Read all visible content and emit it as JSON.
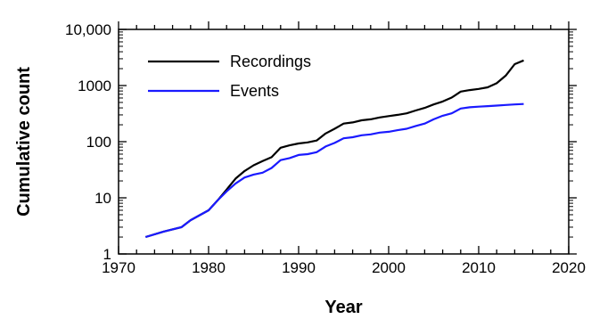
{
  "chart_data": {
    "type": "line",
    "title": "",
    "xlabel": "Year",
    "ylabel": "Cumulative count",
    "xlim": [
      1970,
      2020
    ],
    "ylim": [
      1,
      10000
    ],
    "yscale": "log",
    "x_ticks": [
      "1970",
      "1980",
      "1990",
      "2000",
      "2010",
      "2020"
    ],
    "y_ticks": [
      "1",
      "10",
      "100",
      "1000",
      "10,000"
    ],
    "legend_position": "top-left",
    "grid": false,
    "series": [
      {
        "name": "Recordings",
        "color": "#000000",
        "x": [
          1973,
          1975,
          1977,
          1978,
          1980,
          1981,
          1982,
          1983,
          1984,
          1985,
          1986,
          1987,
          1988,
          1989,
          1990,
          1991,
          1992,
          1993,
          1994,
          1995,
          1996,
          1997,
          1998,
          1999,
          2000,
          2001,
          2002,
          2003,
          2004,
          2005,
          2006,
          2007,
          2008,
          2009,
          2010,
          2011,
          2012,
          2013,
          2014,
          2015
        ],
        "values": [
          2,
          2.5,
          3,
          4,
          6,
          9,
          14,
          22,
          30,
          38,
          45,
          53,
          78,
          86,
          93,
          97,
          105,
          140,
          170,
          210,
          220,
          240,
          250,
          270,
          285,
          300,
          320,
          360,
          400,
          460,
          520,
          610,
          780,
          830,
          870,
          930,
          1100,
          1500,
          2400,
          2800
        ]
      },
      {
        "name": "Events",
        "color": "#1a1aff",
        "x": [
          1973,
          1975,
          1977,
          1978,
          1980,
          1981,
          1982,
          1983,
          1984,
          1985,
          1986,
          1987,
          1988,
          1989,
          1990,
          1991,
          1992,
          1993,
          1994,
          1995,
          1996,
          1997,
          1998,
          1999,
          2000,
          2001,
          2002,
          2003,
          2004,
          2005,
          2006,
          2007,
          2008,
          2009,
          2010,
          2011,
          2012,
          2013,
          2014,
          2015
        ],
        "values": [
          2,
          2.5,
          3,
          4,
          6,
          9,
          13,
          18,
          23,
          26,
          28,
          34,
          47,
          51,
          58,
          60,
          65,
          82,
          95,
          115,
          120,
          130,
          135,
          145,
          150,
          160,
          170,
          190,
          210,
          250,
          290,
          320,
          390,
          410,
          420,
          430,
          440,
          450,
          460,
          470
        ]
      }
    ]
  }
}
